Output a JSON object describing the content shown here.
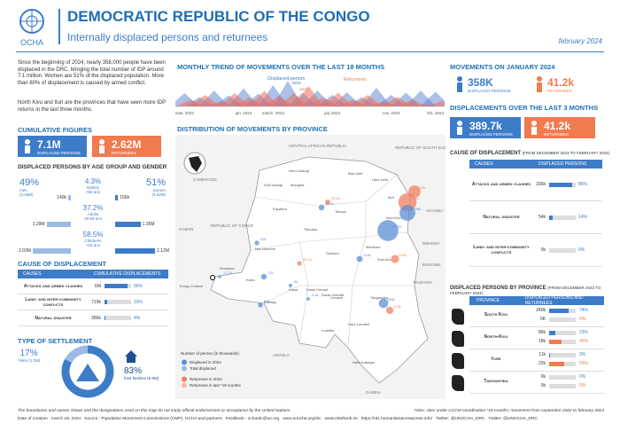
{
  "header": {
    "logo": "OCHA",
    "title": "DEMOCRATIC REPUBLIC OF THE CONGO",
    "subtitle": "Internally displaced persons and returnees",
    "date": "february 2024"
  },
  "intro": [
    "Since the beginning of 2024, nearly 358,000 people have been displaced in the DRC, bringing the total number of IDP around 7.1 million. Women are 51% of the displaced population. More than 80% of displacement is caused by armed conflict.",
    "North Kivu and Ituri are the provinces that have seen more IDP returns in the last three months."
  ],
  "cumulative": {
    "title": "CUMULATIVE FIGURES",
    "displaced": {
      "value": "7.1M",
      "label": "DISPLACED PERSONS"
    },
    "returnees": {
      "value": "2.62M",
      "label": "RETURNEES"
    }
  },
  "age_gender": {
    "title": "DISPLACED PERSONS BY AGE GROUP AND GENDER",
    "men": {
      "pct": "49%",
      "label": "men",
      "total": "(3.46M)"
    },
    "women": {
      "pct": "51%",
      "label": "women",
      "total": "(3.62M)"
    },
    "groups": [
      {
        "pct": "4.3%",
        "name": "Elderly",
        "range": ">59 ans",
        "men": {
          "value": 140000,
          "label": "140k"
        },
        "women": {
          "value": 156000,
          "label": "156k"
        }
      },
      {
        "pct": "37.2%",
        "name": "Adults",
        "range": "18-59 ans",
        "men": {
          "value": 1290000,
          "label": "1.29M"
        },
        "women": {
          "value": 1350000,
          "label": "1.35M"
        }
      },
      {
        "pct": "58.5%",
        "name": "Childrens",
        "range": "<18 ans",
        "men": {
          "value": 2030000,
          "label": "2.03M"
        },
        "women": {
          "value": 2120000,
          "label": "2.12M"
        }
      }
    ]
  },
  "cause_cumulative": {
    "title": "CAUSE OF DISPLACEMENT",
    "col_causes": "CAUSES",
    "col_values": "CUMULATIVE DISPLACEMENTS",
    "rows": [
      {
        "cause": "Attacks and armed clashes",
        "count": "6M",
        "pct": {
          "value": 86,
          "label": "86%"
        }
      },
      {
        "cause": "Land- and inter-community conflicts",
        "count": "719k",
        "pct": {
          "value": 10,
          "label": "10%"
        }
      },
      {
        "cause": "Natural disaster",
        "count": "286k",
        "pct": {
          "value": 4,
          "label": "4%"
        }
      }
    ]
  },
  "settlement": {
    "title": "TYPE OF SETTLEMENT",
    "sites": {
      "value": 17,
      "label": "17%",
      "text": "*sites (1.2M)"
    },
    "host": {
      "value": 83,
      "label": "83%",
      "text": "host families (5.9M)"
    }
  },
  "trend": {
    "title": "MONTHLY TREND OF MOVEMENTS OVER THE LAST 18 MONTHS",
    "categories": [
      "sept. 2022",
      null,
      null,
      null,
      "jan. 2023",
      null,
      "march. 2023",
      null,
      null,
      null,
      "july 2023",
      null,
      null,
      null,
      "nov. 2023",
      null,
      null,
      "feb. 2024"
    ],
    "displaced": {
      "name": "Displaced person",
      "peak": "581k",
      "values": [
        300,
        210,
        360,
        250,
        410,
        290,
        480,
        581,
        310,
        360,
        260,
        320,
        210,
        420,
        260,
        310,
        358,
        330
      ]
    },
    "returnees": {
      "name": "Returnees",
      "peak": "461k",
      "values": [
        150,
        260,
        110,
        300,
        200,
        350,
        240,
        300,
        461,
        210,
        310,
        160,
        260,
        110,
        220,
        160,
        41.2,
        120
      ]
    }
  },
  "map": {
    "title": "DISTRIBUTION OF MOVEMENTS BY PROVINCE",
    "countries": [
      "CENTRAL AFRICAN REPUBLIC",
      "REPUBLIC OF SOUTH SUDAN",
      "CAMEROON",
      "GABON",
      "REPUBLIC OF CONGO",
      "UGANDA",
      "RWANDA",
      "BURUNDI",
      "TANZANIA",
      "ANGOLA",
      "ZAMBIA"
    ],
    "provinces": [
      "Nord-Ubangi",
      "Bas-Uele",
      "Sud-Ubangi",
      "Mongala",
      "Haut-Uele",
      "Ituri",
      "Tshopo",
      "Equateur",
      "Nord-Kivu",
      "Tshuapa",
      "Maniema",
      "Sud-Kivu",
      "Sankuru",
      "Mai-Ndombe",
      "Kinshasa",
      "Kongo Central",
      "Kwilu",
      "Kwango",
      "Kasai",
      "Kasai Central",
      "Kasai Oriental",
      "Lomami",
      "Tanganyika",
      "Haut-Lomami",
      "Lualaba",
      "Haut-Katanga"
    ],
    "bubbles": [
      {
        "label": "711k",
        "value": 711,
        "color": "#f08060"
      },
      {
        "label": "53.4k",
        "value": 53.4,
        "color": "#f08060"
      },
      {
        "label": "76.4k",
        "value": 76.4,
        "color": "#5b8fd6"
      },
      {
        "label": "1.9M",
        "value": 1900,
        "color": "#f08060"
      },
      {
        "label": "2.67M",
        "value": 2670,
        "color": "#5b8fd6"
      },
      {
        "label": "104k",
        "value": 104,
        "color": "#5b8fd6"
      },
      {
        "label": "1.38M",
        "value": 1380,
        "color": "#5b8fd6"
      },
      {
        "label": "233k",
        "value": 233,
        "color": "#f08060"
      },
      {
        "label": "32k",
        "value": 32,
        "color": "#5b8fd6"
      },
      {
        "label": "1.77k",
        "value": 1.77,
        "color": "#5b8fd6"
      },
      {
        "label": "72k",
        "value": 72,
        "color": "#5b8fd6"
      },
      {
        "label": "29.7k",
        "value": 29.7,
        "color": "#f08060"
      },
      {
        "label": "8k",
        "value": 8,
        "color": "#5b8fd6"
      },
      {
        "label": "36k",
        "value": 36,
        "color": "#5b8fd6"
      },
      {
        "label": "4.4k",
        "value": 4.4,
        "color": "#5b8fd6"
      },
      {
        "label": "365k",
        "value": 365,
        "color": "#5b8fd6"
      },
      {
        "label": "174k",
        "value": 174,
        "color": "#f08060"
      }
    ],
    "legend": {
      "title": "Number of person (in thousands)",
      "items": [
        "Displaced in 2024",
        "Total displaced",
        "Returnees in 2024",
        "Returnees in last *18 months"
      ]
    }
  },
  "january": {
    "title": "MOVEMENTS ON JANUARY 2024",
    "displaced": {
      "value": "358K",
      "label": "DISPLACED PERSONS"
    },
    "returnees": {
      "value": "41.2k",
      "label": "RETURNEES"
    }
  },
  "last3": {
    "title": "DISPLACEMENTS OVER THE LAST 3 MONTHS",
    "displaced": {
      "value": "389.7k",
      "label": "DISPLACED PERSONS"
    },
    "returnees": {
      "value": "41.2k",
      "label": "RETURNEES"
    }
  },
  "cause_recent": {
    "title": "CAUSE OF DISPLACEMENT",
    "period": "(FROM DECEMBER 2023 TO FEBRUARY 2024)",
    "col_causes": "CAUSES",
    "col_values": "DISPLACED PERSONS",
    "rows": [
      {
        "cause": "Attacks and armed clashes",
        "count": "336k",
        "pct": {
          "value": 86,
          "label": "86%"
        }
      },
      {
        "cause": "Natural disaster",
        "count": "54k",
        "pct": {
          "value": 14,
          "label": "14%"
        }
      },
      {
        "cause": "Land- and inter-community conflicts",
        "count": "0k",
        "pct": {
          "value": 0,
          "label": "0%"
        }
      }
    ]
  },
  "province_table": {
    "title": "DISPLACED PERSONS BY PROVINCE",
    "period": "(FROM DECEMBER 2023 TO FEBRUARY 2024)",
    "col_province": "PROVINCE",
    "col_values": "DISPLACED PERSONS AND RETURNEES",
    "rows": [
      {
        "province": "South Kivu",
        "displaced": "240k",
        "displaced_pct": {
          "value": 74,
          "label": "74%"
        },
        "returnees": "0K",
        "returnees_pct": {
          "value": 0,
          "label": "0%"
        }
      },
      {
        "province": "North-Kivu",
        "displaced": "86k",
        "displaced_pct": {
          "value": 23,
          "label": "23%"
        },
        "returnees": "18k",
        "returnees_pct": {
          "value": 45,
          "label": "45%"
        }
      },
      {
        "province": "Ituri",
        "displaced": "11k",
        "displaced_pct": {
          "value": 3,
          "label": "3%"
        },
        "returnees": "22k",
        "returnees_pct": {
          "value": 55,
          "label": "55%"
        }
      },
      {
        "province": "Tanganyika",
        "displaced": "0k",
        "displaced_pct": {
          "value": 0,
          "label": "0%"
        },
        "returnees": "0k",
        "returnees_pct": {
          "value": 0,
          "label": "0%"
        }
      }
    ]
  },
  "footer": {
    "disclaimer": "The boundaries and names shown and the designations used on this map do not imply official endorsement or acceptance by the United Nations.",
    "notes": "*sites: sites under CCCM coordination *18 months: movement from septembre 2022 to february 2024",
    "credits": "Date of creation : march 18, 2024   Source : Population Movement Commissions (CMP), OCHA and partners   Feedback : ochardc@un.org   www.unocha.org/drc   www.reliefweb.int   https://rdc.humanitarianresponse.info/   Twitter: @UNOCHA_DRC   Twitter: @UNOCHA_DRC"
  }
}
